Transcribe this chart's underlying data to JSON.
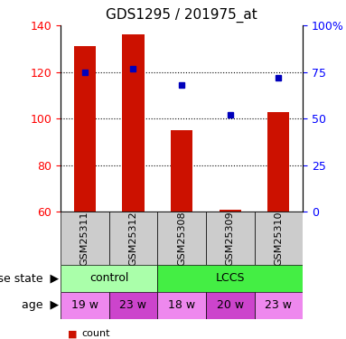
{
  "title": "GDS1295 / 201975_at",
  "samples": [
    "GSM25311",
    "GSM25312",
    "GSM25308",
    "GSM25309",
    "GSM25310"
  ],
  "bar_values": [
    131,
    136,
    95,
    61,
    103
  ],
  "percentile_values": [
    75,
    77,
    68,
    52,
    72
  ],
  "ylim_left": [
    60,
    140
  ],
  "ylim_right": [
    0,
    100
  ],
  "yticks_left": [
    60,
    80,
    100,
    120,
    140
  ],
  "yticks_right": [
    0,
    25,
    50,
    75,
    100
  ],
  "ytick_labels_right": [
    "0",
    "25",
    "50",
    "75",
    "100%"
  ],
  "bar_color": "#cc1100",
  "dot_color": "#0000bb",
  "disease_groups": [
    {
      "label": "control",
      "start": 0,
      "end": 2,
      "color": "#aaffaa"
    },
    {
      "label": "LCCS",
      "start": 2,
      "end": 5,
      "color": "#44ee44"
    }
  ],
  "age_labels": [
    "19 w",
    "23 w",
    "18 w",
    "20 w",
    "23 w"
  ],
  "age_colors": [
    "#ee88ee",
    "#cc44cc",
    "#ee88ee",
    "#cc44cc",
    "#ee88ee"
  ],
  "sample_bg_color": "#cccccc",
  "grid_color": "#000000",
  "title_fontsize": 11,
  "tick_fontsize": 9,
  "sample_fontsize": 8,
  "annotation_fontsize": 9,
  "label_fontsize": 9
}
